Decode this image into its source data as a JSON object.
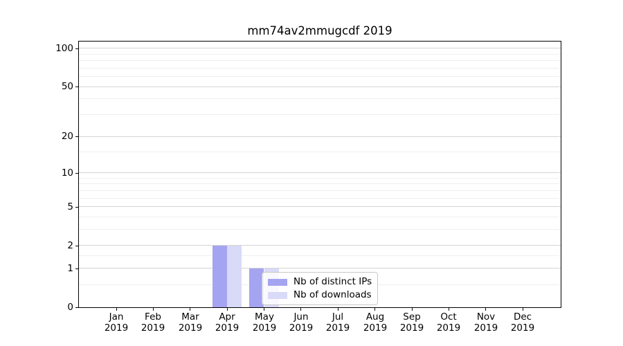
{
  "title": "mm74av2mmugcdf 2019",
  "chart_data": {
    "type": "bar",
    "title": "mm74av2mmugcdf 2019",
    "categories": [
      "Jan",
      "Feb",
      "Mar",
      "Apr",
      "May",
      "Jun",
      "Jul",
      "Aug",
      "Sep",
      "Oct",
      "Nov",
      "Dec"
    ],
    "x_year": "2019",
    "series": [
      {
        "name": "Nb of distinct IPs",
        "color": "#a4a4f0",
        "values": [
          0,
          0,
          0,
          2,
          1,
          0,
          0,
          0,
          0,
          0,
          0,
          0
        ]
      },
      {
        "name": "Nb of downloads",
        "color": "#d9d9f8",
        "values": [
          0,
          0,
          0,
          2,
          1,
          0,
          0,
          0,
          0,
          0,
          0,
          0
        ]
      }
    ],
    "yscale": "log1p",
    "ylim": [
      0,
      113
    ],
    "yticks": [
      0,
      1,
      2,
      5,
      10,
      20,
      50,
      100
    ],
    "minor_yticks": [
      0.5,
      1.5,
      3,
      4,
      6,
      7,
      8,
      9,
      15,
      30,
      40,
      60,
      70,
      80,
      90
    ],
    "grid": true,
    "legend_position": "lower center (inside plot)"
  },
  "colors": {
    "background": "#ffffff",
    "spine": "#000000",
    "text": "#000000",
    "major_grid": "#d4d4d4",
    "minor_grid": "#efefef",
    "legend_border": "#c8c8c8"
  }
}
